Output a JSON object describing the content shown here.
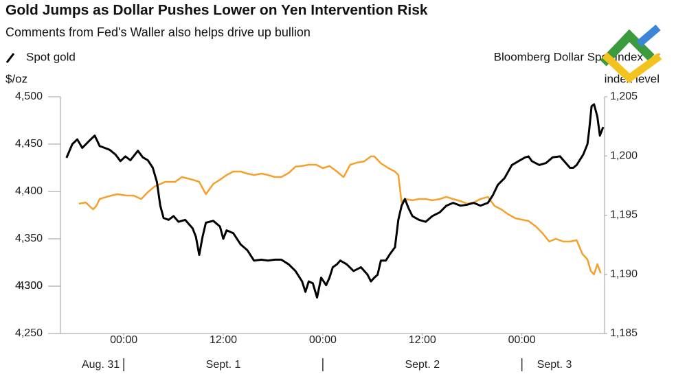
{
  "chart_data": {
    "type": "line",
    "title": "Gold Jumps as Dollar Pushes Lower on Yen Intervention Risk",
    "subtitle": "Comments from Fed's Waller also helps drive up bullion",
    "y_label": "$/oz",
    "y2_label": "index level",
    "xlim": [
      -7.3,
      57.8
    ],
    "xticks": [
      {
        "value": 0,
        "label": "00:00"
      },
      {
        "value": 12,
        "label": "12:00"
      },
      {
        "value": 24,
        "label": "00:00"
      },
      {
        "value": 36,
        "label": "12:00"
      },
      {
        "value": 48,
        "label": "00:00"
      }
    ],
    "date_labels": [
      "Aug. 31",
      "Sept. 1",
      "Sept. 2",
      "Sept. 3"
    ],
    "ylim": [
      4250,
      4500
    ],
    "yticks": [
      {
        "value": 4250,
        "label": "4,250"
      },
      4300,
      {
        "value": 4300,
        "label": "4,300"
      },
      {
        "value": 4350,
        "label": "4,350"
      },
      {
        "value": 4400,
        "label": "4,400"
      },
      {
        "value": 4450,
        "label": "4,450"
      },
      {
        "value": 4500,
        "label": "4,500"
      }
    ],
    "y2lim": [
      1185,
      1205
    ],
    "y2ticks": [
      {
        "value": 1185,
        "label": "1,185"
      },
      {
        "value": 1190,
        "label": "1,190"
      },
      {
        "value": 1195,
        "label": "1,195"
      },
      {
        "value": 1200,
        "label": "1,200"
      },
      {
        "value": 1205,
        "label": "1,205"
      }
    ],
    "series": [
      {
        "name": "Spot gold",
        "color": "#000000",
        "axis": "y",
        "x": [
          -6.9,
          -6.2,
          -5.6,
          -5.0,
          -4.1,
          -3.5,
          -2.9,
          -2.3,
          -1.7,
          -1.0,
          -0.4,
          0.2,
          0.8,
          1.7,
          2.3,
          2.9,
          3.5,
          4.0,
          4.4,
          4.8,
          5.4,
          6.0,
          6.6,
          7.4,
          8.3,
          8.7,
          9.1,
          9.5,
          9.9,
          10.8,
          11.6,
          12.0,
          12.4,
          13.2,
          14.1,
          14.9,
          15.7,
          16.6,
          17.4,
          18.2,
          19.0,
          19.9,
          20.7,
          21.5,
          21.9,
          22.3,
          22.8,
          23.3,
          23.8,
          24.4,
          24.8,
          25.2,
          25.7,
          26.1,
          26.9,
          27.7,
          28.6,
          29.4,
          29.8,
          30.2,
          30.6,
          31.0,
          31.6,
          32.1,
          32.7,
          33.1,
          33.5,
          33.9,
          34.3,
          34.8,
          35.6,
          36.4,
          37.2,
          38.1,
          38.9,
          39.7,
          40.6,
          41.4,
          42.2,
          43.0,
          43.9,
          44.5,
          45.1,
          45.9,
          46.8,
          47.6,
          48.4,
          48.8,
          49.2,
          50.1,
          50.9,
          51.7,
          52.6,
          53.0,
          53.8,
          54.2,
          54.6,
          55.4,
          55.9,
          56.1,
          56.4,
          56.7,
          57.1,
          57.4,
          57.8
        ],
        "values": [
          4435.5,
          4450,
          4455,
          4446,
          4454,
          4459,
          4448,
          4446,
          4444,
          4439,
          4432,
          4437,
          4433,
          4443,
          4436,
          4433,
          4425,
          4410,
          4385,
          4372,
          4370,
          4374,
          4368,
          4370,
          4361,
          4352,
          4333,
          4352,
          4367,
          4369,
          4363,
          4350,
          4359,
          4356,
          4344,
          4338,
          4327,
          4328,
          4327,
          4328,
          4328,
          4323,
          4316,
          4305,
          4294,
          4305,
          4303,
          4288,
          4309,
          4301,
          4309,
          4320,
          4323,
          4327,
          4323,
          4316,
          4320,
          4312,
          4305,
          4309,
          4312,
          4327,
          4327,
          4334,
          4341,
          4370,
          4385,
          4392,
          4383,
          4374,
          4370,
          4368,
          4374,
          4378,
          4385,
          4388,
          4385,
          4386,
          4388,
          4385,
          4388,
          4396,
          4407,
          4414,
          4428,
          4432,
          4436,
          4437,
          4432,
          4428,
          4430,
          4436,
          4437,
          4433,
          4425,
          4425,
          4428,
          4439,
          4450,
          4464,
          4490,
          4492,
          4479,
          4459,
          4468
        ]
      },
      {
        "name": "Bloomberg Dollar Spot Index",
        "color": "#f5a02c",
        "axis": "y2",
        "x": [
          -5.4,
          -4.6,
          -3.7,
          -3.3,
          -2.9,
          -2.1,
          -0.8,
          0.4,
          1.2,
          2.1,
          2.9,
          3.7,
          5.0,
          6.2,
          7.0,
          8.3,
          9.1,
          9.9,
          10.8,
          11.6,
          12.4,
          13.2,
          14.1,
          14.9,
          15.7,
          16.6,
          17.4,
          18.2,
          19.0,
          19.9,
          20.7,
          21.5,
          22.3,
          23.2,
          24.0,
          24.8,
          25.7,
          26.5,
          27.3,
          28.1,
          29.0,
          29.8,
          30.2,
          31.0,
          31.9,
          32.7,
          33.1,
          33.5,
          33.9,
          34.8,
          35.6,
          36.4,
          37.2,
          38.1,
          38.9,
          39.7,
          40.6,
          41.4,
          42.2,
          43.0,
          43.9,
          44.7,
          45.5,
          46.3,
          47.2,
          48.0,
          48.8,
          49.7,
          50.5,
          51.3,
          52.1,
          53.0,
          53.8,
          54.6,
          55.3,
          55.9,
          56.3,
          56.7,
          57.1,
          57.5
        ],
        "values": [
          1195.96,
          1196.07,
          1195.49,
          1195.78,
          1196.36,
          1196.54,
          1196.77,
          1196.65,
          1196.65,
          1196.36,
          1196.94,
          1197.41,
          1197.81,
          1197.81,
          1198.22,
          1197.99,
          1197.81,
          1196.77,
          1197.64,
          1197.99,
          1198.39,
          1198.68,
          1198.68,
          1198.51,
          1198.39,
          1198.51,
          1198.39,
          1198.22,
          1198.22,
          1198.57,
          1199.09,
          1199.15,
          1199.26,
          1199.26,
          1198.97,
          1199.15,
          1198.68,
          1198.22,
          1199.26,
          1199.43,
          1199.55,
          1199.96,
          1199.96,
          1199.38,
          1198.97,
          1198.68,
          1198.39,
          1196.07,
          1196.36,
          1196.25,
          1196.36,
          1196.36,
          1196.25,
          1196.36,
          1196.54,
          1196.36,
          1196.19,
          1195.96,
          1196.07,
          1196.36,
          1196.54,
          1195.78,
          1195.49,
          1195.09,
          1194.74,
          1194.62,
          1194.51,
          1194.04,
          1193.46,
          1192.77,
          1193.0,
          1192.77,
          1192.77,
          1192.88,
          1191.72,
          1191.26,
          1190.28,
          1189.99,
          1190.86,
          1190.1
        ]
      }
    ]
  }
}
